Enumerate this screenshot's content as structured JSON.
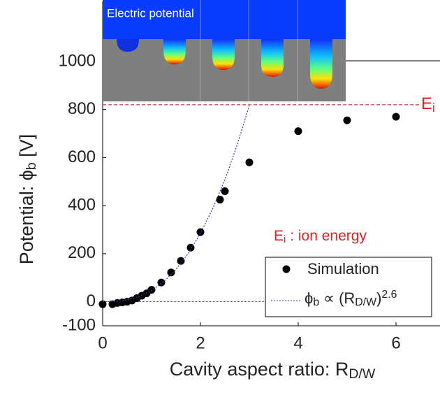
{
  "chart_data": {
    "type": "scatter",
    "inset_title": "Electric potential",
    "ylabel_parts": [
      "Potential: ϕ",
      "b",
      " [V]"
    ],
    "xlabel_parts": [
      "Cavity aspect ratio: R",
      "D/W"
    ],
    "xlim": [
      0,
      6.9
    ],
    "ylim": [
      -100,
      1250
    ],
    "xticks": [
      0,
      2,
      4,
      6
    ],
    "yticks": [
      -100,
      0,
      200,
      400,
      600,
      800,
      1000
    ],
    "series": [
      {
        "name": "Simulation",
        "color": "#000000",
        "x": [
          0,
          0.2,
          0.3,
          0.4,
          0.5,
          0.6,
          0.7,
          0.8,
          0.9,
          1.0,
          1.2,
          1.4,
          1.6,
          1.8,
          2.0,
          2.4,
          2.5,
          3.0,
          4.0,
          5.0,
          6.0
        ],
        "values": [
          -10,
          -10,
          -5,
          -3,
          0,
          5,
          15,
          25,
          35,
          50,
          80,
          122,
          170,
          225,
          290,
          425,
          460,
          580,
          710,
          755,
          770
        ]
      },
      {
        "label_parts": [
          "ϕ",
          "b",
          " ∝ (R",
          "D/W",
          ")",
          "2.6"
        ],
        "color": "#3a3aa0",
        "style": "dashed",
        "x": [
          0,
          0.25,
          0.5,
          0.75,
          1,
          1.25,
          1.5,
          1.75,
          2,
          2.25,
          2.5,
          2.75,
          3
        ],
        "values": [
          0,
          1.3,
          7.7,
          22,
          47,
          84,
          135,
          201,
          285,
          387,
          508,
          652,
          818
        ]
      }
    ],
    "reference": {
      "value": 820,
      "color": "#dd2222",
      "label_parts": [
        "E",
        "i"
      ]
    },
    "annotation_parts": [
      "E",
      "i",
      " : ion energy"
    ]
  }
}
